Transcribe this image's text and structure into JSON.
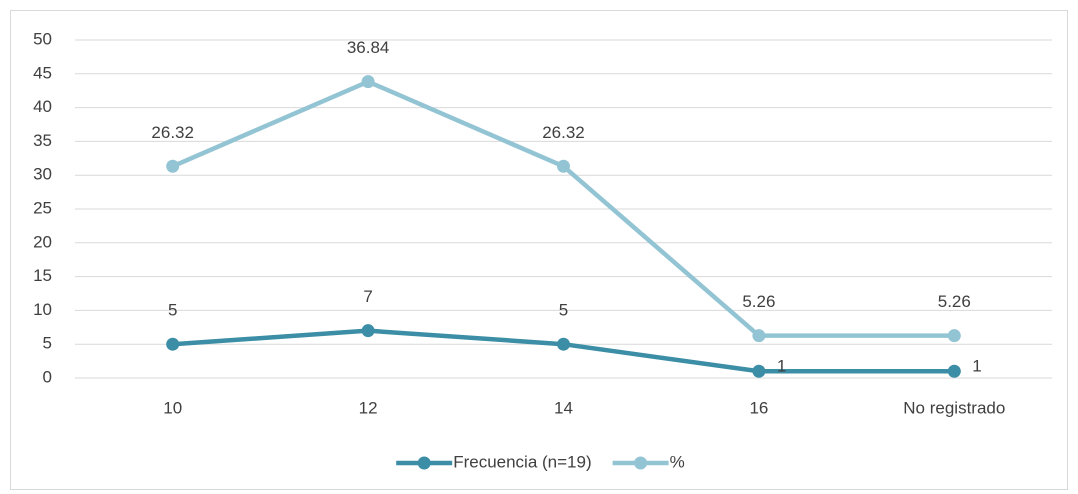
{
  "chart_data": {
    "type": "line",
    "stacked": true,
    "categories": [
      "10",
      "12",
      "14",
      "16",
      "No registrado"
    ],
    "series": [
      {
        "name": "Frecuencia (n=19)",
        "color": "#3b8ea5",
        "values": [
          5,
          7,
          5,
          1,
          1
        ]
      },
      {
        "name": "%",
        "color": "#93c4d4",
        "values": [
          26.32,
          36.84,
          26.32,
          5.26,
          5.26
        ]
      }
    ],
    "ylim": [
      0,
      50
    ],
    "yticks": [
      0,
      5,
      10,
      15,
      20,
      25,
      30,
      35,
      40,
      45,
      50
    ],
    "grid": true,
    "legend": "bottom"
  }
}
